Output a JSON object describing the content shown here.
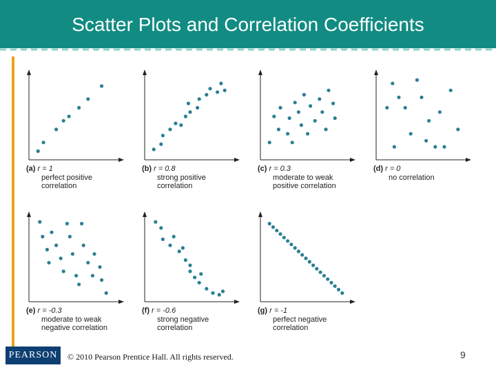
{
  "slide": {
    "title": "Scatter Plots and Correlation Coefficients",
    "copyright": "© 2010 Pearson Prentice Hall. All rights reserved.",
    "page_number": "9",
    "logo_text": "PEARSON",
    "colors": {
      "header": "#128c83",
      "accent": "#e8a21b",
      "dots": "#2a7f93",
      "dash": "#8fd3cd",
      "logo_bg": "#0e3f72"
    }
  },
  "panels": [
    {
      "letter": "(a)",
      "r_label": "r = 1",
      "desc": [
        "perfect positive",
        "correlation"
      ],
      "points": [
        [
          0.1,
          0.1
        ],
        [
          0.16,
          0.2
        ],
        [
          0.3,
          0.35
        ],
        [
          0.38,
          0.45
        ],
        [
          0.44,
          0.5
        ],
        [
          0.55,
          0.6
        ],
        [
          0.65,
          0.7
        ],
        [
          0.8,
          0.85
        ]
      ]
    },
    {
      "letter": "(b)",
      "r_label": "r = 0.8",
      "desc": [
        "strong positive",
        "correlation"
      ],
      "points": [
        [
          0.1,
          0.12
        ],
        [
          0.18,
          0.18
        ],
        [
          0.2,
          0.28
        ],
        [
          0.28,
          0.35
        ],
        [
          0.34,
          0.42
        ],
        [
          0.4,
          0.4
        ],
        [
          0.45,
          0.5
        ],
        [
          0.5,
          0.55
        ],
        [
          0.48,
          0.65
        ],
        [
          0.58,
          0.6
        ],
        [
          0.6,
          0.7
        ],
        [
          0.68,
          0.75
        ],
        [
          0.72,
          0.82
        ],
        [
          0.8,
          0.78
        ],
        [
          0.84,
          0.88
        ],
        [
          0.88,
          0.8
        ]
      ]
    },
    {
      "letter": "(c)",
      "r_label": "r = 0.3",
      "desc": [
        "moderate to weak",
        "positive correlation"
      ],
      "points": [
        [
          0.1,
          0.2
        ],
        [
          0.15,
          0.5
        ],
        [
          0.2,
          0.35
        ],
        [
          0.22,
          0.6
        ],
        [
          0.3,
          0.3
        ],
        [
          0.32,
          0.48
        ],
        [
          0.35,
          0.2
        ],
        [
          0.38,
          0.66
        ],
        [
          0.42,
          0.55
        ],
        [
          0.45,
          0.4
        ],
        [
          0.48,
          0.75
        ],
        [
          0.52,
          0.3
        ],
        [
          0.55,
          0.62
        ],
        [
          0.6,
          0.45
        ],
        [
          0.65,
          0.7
        ],
        [
          0.68,
          0.55
        ],
        [
          0.72,
          0.35
        ],
        [
          0.75,
          0.8
        ],
        [
          0.8,
          0.65
        ],
        [
          0.82,
          0.48
        ]
      ]
    },
    {
      "letter": "(d)",
      "r_label": "r = 0",
      "desc": [
        "no correlation"
      ],
      "points": [
        [
          0.12,
          0.6
        ],
        [
          0.18,
          0.88
        ],
        [
          0.2,
          0.15
        ],
        [
          0.25,
          0.72
        ],
        [
          0.32,
          0.6
        ],
        [
          0.38,
          0.3
        ],
        [
          0.45,
          0.92
        ],
        [
          0.5,
          0.72
        ],
        [
          0.55,
          0.22
        ],
        [
          0.58,
          0.45
        ],
        [
          0.65,
          0.15
        ],
        [
          0.7,
          0.55
        ],
        [
          0.75,
          0.15
        ],
        [
          0.82,
          0.8
        ],
        [
          0.9,
          0.35
        ]
      ]
    },
    {
      "letter": "(e)",
      "r_label": "r = -0.3",
      "desc": [
        "moderate to weak",
        "negative correlation"
      ],
      "points": [
        [
          0.12,
          0.92
        ],
        [
          0.15,
          0.75
        ],
        [
          0.2,
          0.6
        ],
        [
          0.22,
          0.45
        ],
        [
          0.25,
          0.8
        ],
        [
          0.3,
          0.65
        ],
        [
          0.35,
          0.5
        ],
        [
          0.38,
          0.35
        ],
        [
          0.42,
          0.9
        ],
        [
          0.45,
          0.75
        ],
        [
          0.48,
          0.55
        ],
        [
          0.52,
          0.3
        ],
        [
          0.55,
          0.2
        ],
        [
          0.58,
          0.9
        ],
        [
          0.6,
          0.65
        ],
        [
          0.65,
          0.45
        ],
        [
          0.7,
          0.3
        ],
        [
          0.72,
          0.55
        ],
        [
          0.78,
          0.4
        ],
        [
          0.8,
          0.25
        ],
        [
          0.85,
          0.1
        ]
      ]
    },
    {
      "letter": "(f)",
      "r_label": "r = -0.6",
      "desc": [
        "strong negative",
        "correlation"
      ],
      "points": [
        [
          0.12,
          0.92
        ],
        [
          0.18,
          0.85
        ],
        [
          0.2,
          0.72
        ],
        [
          0.28,
          0.65
        ],
        [
          0.32,
          0.75
        ],
        [
          0.38,
          0.58
        ],
        [
          0.42,
          0.62
        ],
        [
          0.45,
          0.48
        ],
        [
          0.5,
          0.42
        ],
        [
          0.5,
          0.35
        ],
        [
          0.55,
          0.28
        ],
        [
          0.6,
          0.22
        ],
        [
          0.62,
          0.32
        ],
        [
          0.68,
          0.15
        ],
        [
          0.75,
          0.1
        ],
        [
          0.82,
          0.08
        ],
        [
          0.86,
          0.12
        ]
      ]
    },
    {
      "letter": "(g)",
      "r_label": "r = -1",
      "desc": [
        "perfect negative",
        "correlation"
      ],
      "points": [
        [
          0.1,
          0.9
        ],
        [
          0.14,
          0.86
        ],
        [
          0.18,
          0.82
        ],
        [
          0.22,
          0.78
        ],
        [
          0.26,
          0.74
        ],
        [
          0.3,
          0.7
        ],
        [
          0.34,
          0.66
        ],
        [
          0.38,
          0.62
        ],
        [
          0.42,
          0.58
        ],
        [
          0.46,
          0.54
        ],
        [
          0.5,
          0.5
        ],
        [
          0.54,
          0.46
        ],
        [
          0.58,
          0.42
        ],
        [
          0.62,
          0.38
        ],
        [
          0.66,
          0.34
        ],
        [
          0.7,
          0.3
        ],
        [
          0.74,
          0.26
        ],
        [
          0.78,
          0.22
        ],
        [
          0.82,
          0.18
        ],
        [
          0.86,
          0.14
        ],
        [
          0.9,
          0.1
        ]
      ]
    }
  ]
}
